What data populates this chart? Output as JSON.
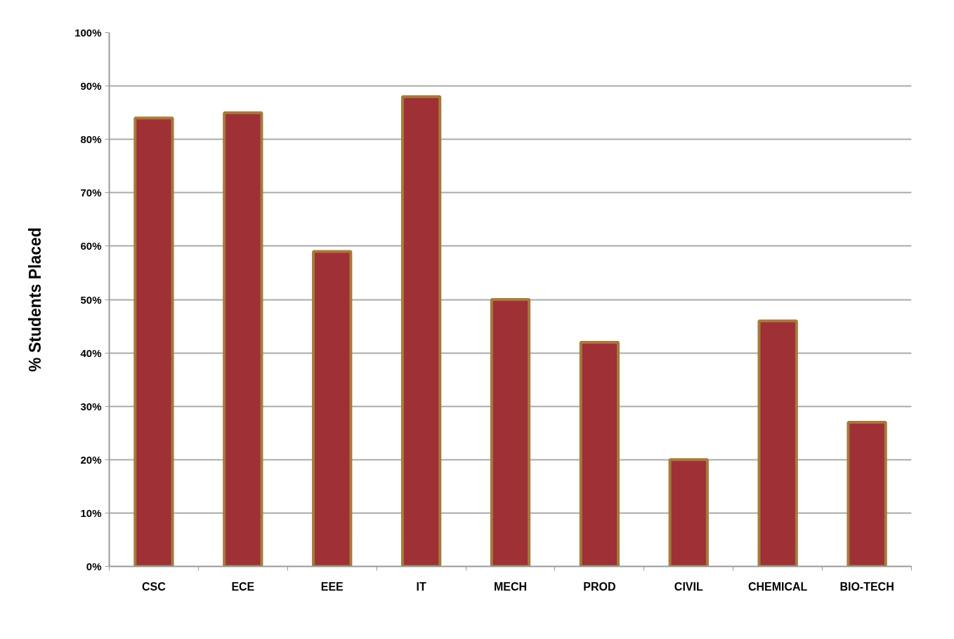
{
  "chart_data": {
    "type": "bar",
    "ylabel": "% Students Placed",
    "categories": [
      "CSC",
      "ECE",
      "EEE",
      "IT",
      "MECH",
      "PROD",
      "CIVIL",
      "CHEMICAL",
      "BIO-TECH"
    ],
    "values": [
      84,
      85,
      59,
      88,
      50,
      42,
      20,
      46,
      27
    ],
    "color": "#9e3036",
    "ylim": [
      0,
      100
    ],
    "yticks": [
      {
        "value": 0,
        "label": "0%"
      },
      {
        "value": 10,
        "label": "10%"
      },
      {
        "value": 20,
        "label": "20%"
      },
      {
        "value": 30,
        "label": "30%"
      },
      {
        "value": 40,
        "label": "40%"
      },
      {
        "value": 50,
        "label": "50%"
      },
      {
        "value": 60,
        "label": "60%"
      },
      {
        "value": 70,
        "label": "70%"
      },
      {
        "value": 80,
        "label": "80%"
      },
      {
        "value": 90,
        "label": "90%"
      },
      {
        "value": 100,
        "label": "100%"
      }
    ],
    "grid": "y"
  }
}
